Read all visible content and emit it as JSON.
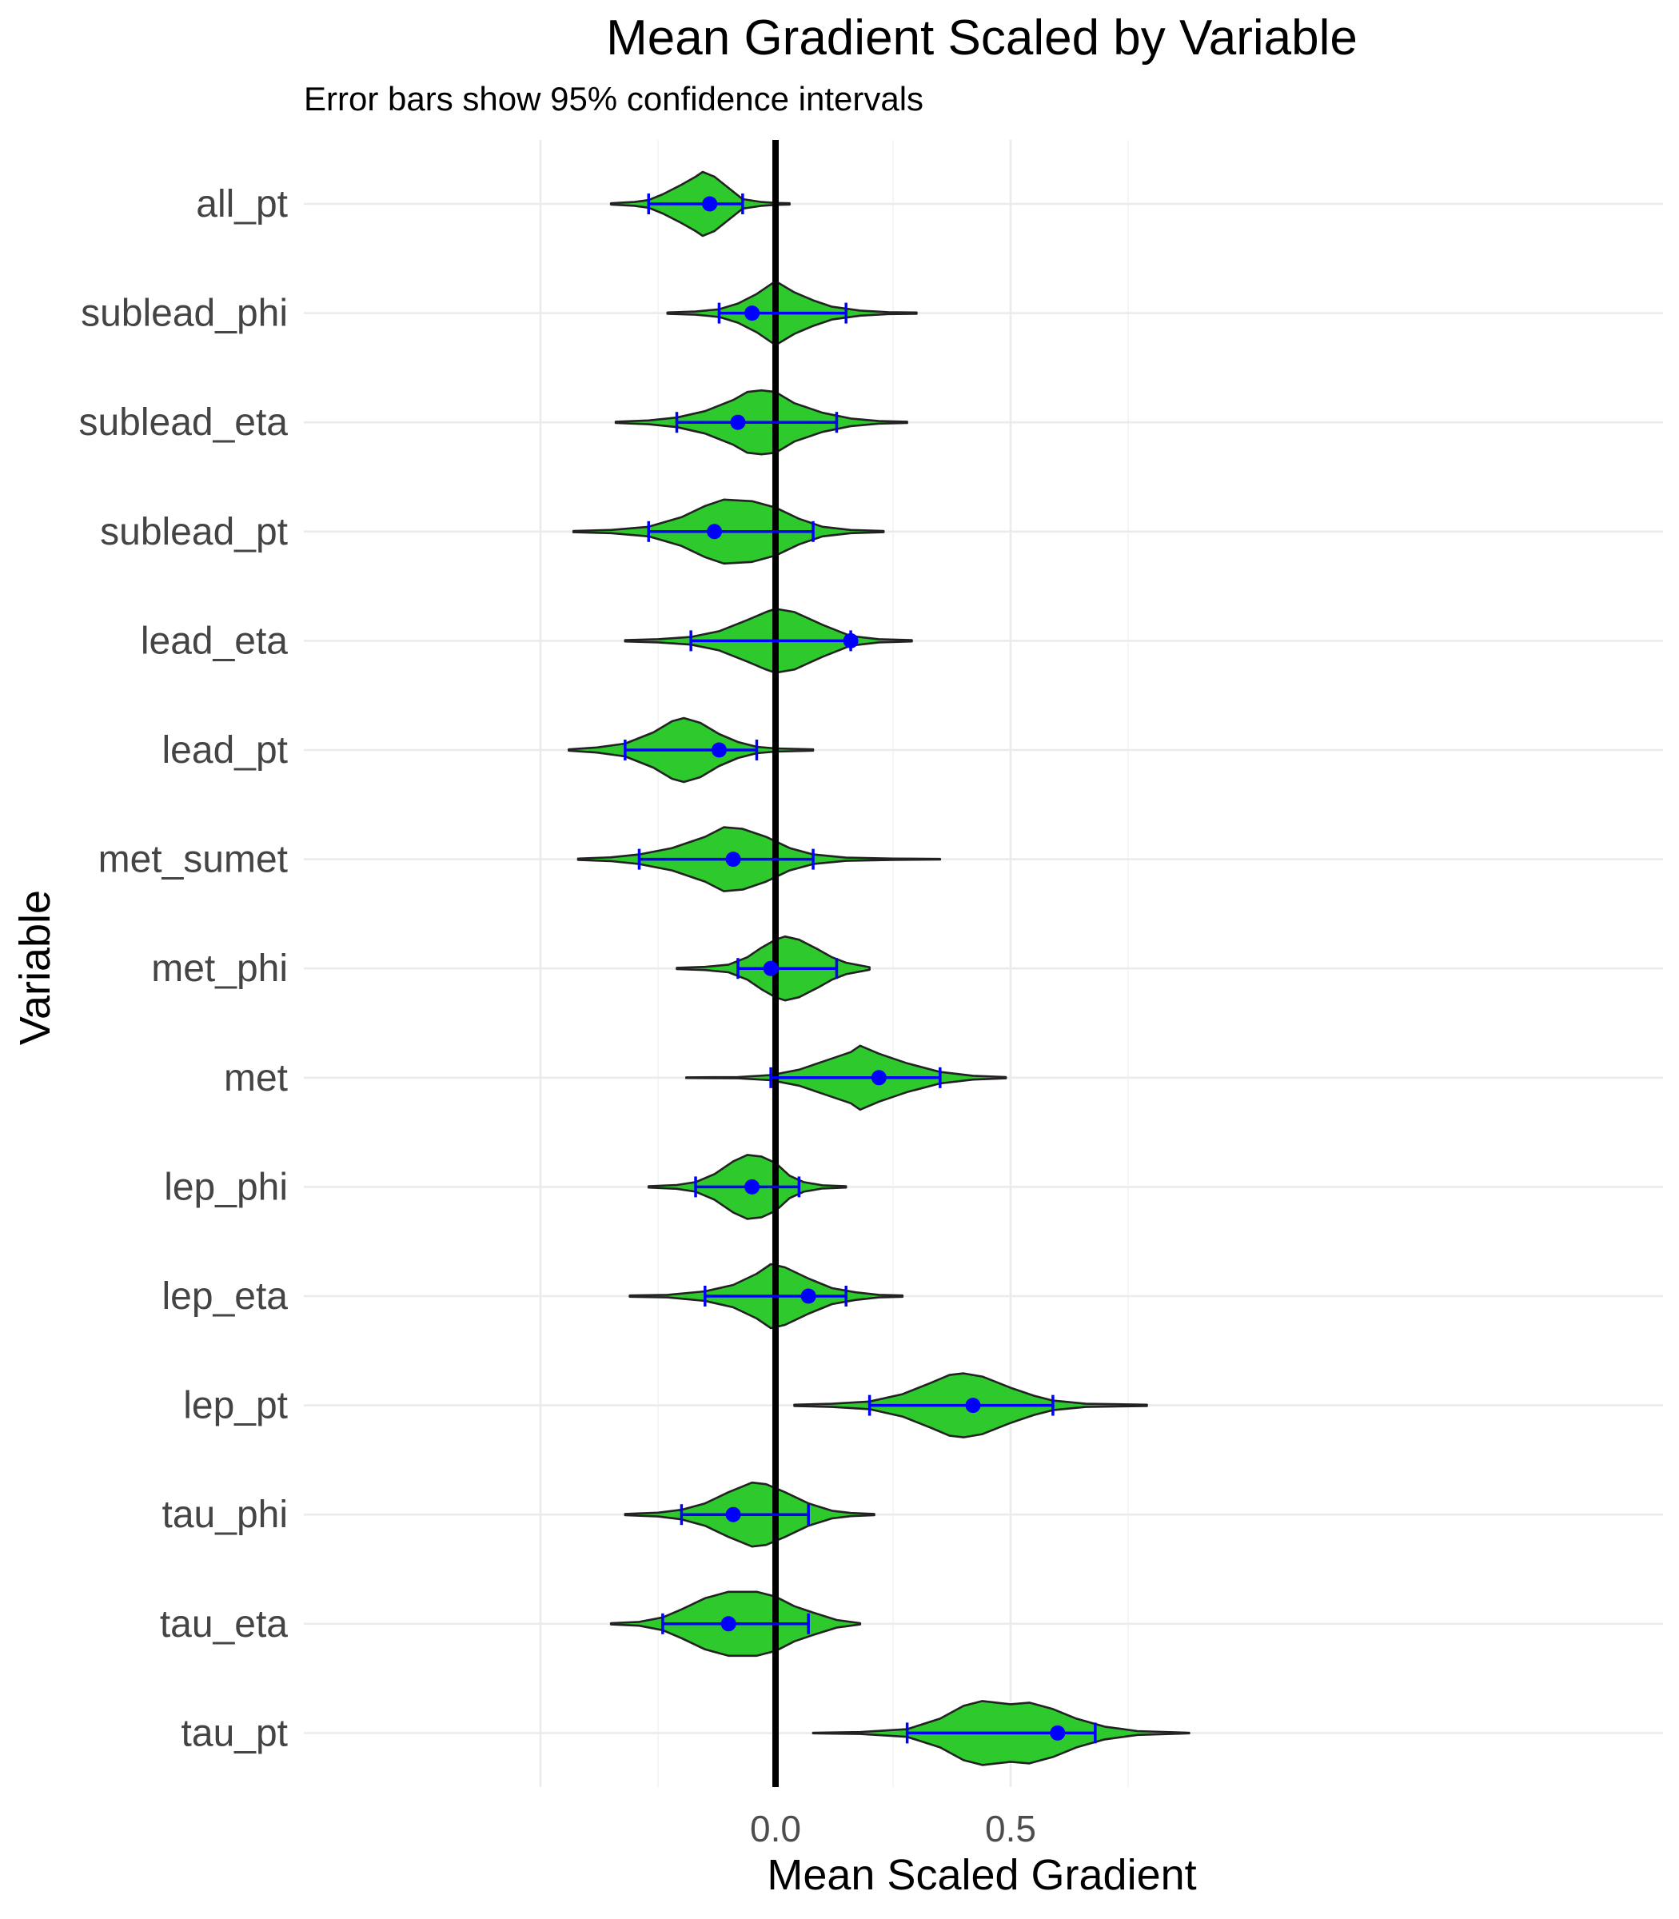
{
  "chart_data": {
    "type": "violin",
    "title": "Mean Gradient Scaled by Variable",
    "subtitle": "Error bars show 95% confidence intervals",
    "xlabel": "Mean Scaled Gradient",
    "ylabel": "Variable",
    "xlim": [
      -0.5,
      0.95
    ],
    "x_ticks": [
      0.0,
      0.5
    ],
    "x_tick_labels": [
      "0.0",
      "0.5"
    ],
    "reference_line_x": 0.0,
    "colors": {
      "fill": "#2dc92d",
      "outline": "#222222",
      "error_bar": "#0000ff",
      "reference_line": "#000000"
    },
    "categories": [
      "all_pt",
      "sublead_phi",
      "sublead_eta",
      "sublead_pt",
      "lead_eta",
      "lead_pt",
      "met_sumet",
      "met_phi",
      "met",
      "lep_phi",
      "lep_eta",
      "lep_pt",
      "tau_phi",
      "tau_eta",
      "tau_pt"
    ],
    "series": [
      {
        "name": "all_pt",
        "mean": -0.14,
        "ci": [
          -0.27,
          -0.07
        ],
        "min": -0.35,
        "max": 0.03,
        "density": [
          [
            -0.35,
            0.02
          ],
          [
            -0.3,
            0.06
          ],
          [
            -0.27,
            0.12
          ],
          [
            -0.24,
            0.3
          ],
          [
            -0.2,
            0.6
          ],
          [
            -0.17,
            0.85
          ],
          [
            -0.155,
            1.0
          ],
          [
            -0.13,
            0.85
          ],
          [
            -0.1,
            0.5
          ],
          [
            -0.07,
            0.15
          ],
          [
            -0.03,
            0.06
          ],
          [
            0.0,
            0.03
          ],
          [
            0.03,
            0.02
          ]
        ]
      },
      {
        "name": "sublead_phi",
        "mean": -0.05,
        "ci": [
          -0.12,
          0.15
        ],
        "min": -0.23,
        "max": 0.3,
        "density": [
          [
            -0.23,
            0.02
          ],
          [
            -0.17,
            0.05
          ],
          [
            -0.12,
            0.12
          ],
          [
            -0.08,
            0.3
          ],
          [
            -0.04,
            0.6
          ],
          [
            0.0,
            1.0
          ],
          [
            0.04,
            0.65
          ],
          [
            0.08,
            0.4
          ],
          [
            0.12,
            0.2
          ],
          [
            0.18,
            0.08
          ],
          [
            0.24,
            0.03
          ],
          [
            0.3,
            0.02
          ]
        ]
      },
      {
        "name": "sublead_eta",
        "mean": -0.08,
        "ci": [
          -0.21,
          0.13
        ],
        "min": -0.34,
        "max": 0.28,
        "density": [
          [
            -0.34,
            0.02
          ],
          [
            -0.27,
            0.06
          ],
          [
            -0.21,
            0.15
          ],
          [
            -0.15,
            0.35
          ],
          [
            -0.09,
            0.7
          ],
          [
            -0.06,
            0.95
          ],
          [
            -0.03,
            1.0
          ],
          [
            0.0,
            0.95
          ],
          [
            0.04,
            0.6
          ],
          [
            0.1,
            0.3
          ],
          [
            0.16,
            0.12
          ],
          [
            0.22,
            0.04
          ],
          [
            0.28,
            0.02
          ]
        ]
      },
      {
        "name": "sublead_pt",
        "mean": -0.13,
        "ci": [
          -0.27,
          0.08
        ],
        "min": -0.43,
        "max": 0.23,
        "density": [
          [
            -0.43,
            0.02
          ],
          [
            -0.35,
            0.05
          ],
          [
            -0.27,
            0.15
          ],
          [
            -0.2,
            0.45
          ],
          [
            -0.15,
            0.8
          ],
          [
            -0.11,
            1.0
          ],
          [
            -0.05,
            0.95
          ],
          [
            0.0,
            0.75
          ],
          [
            0.05,
            0.4
          ],
          [
            0.1,
            0.15
          ],
          [
            0.16,
            0.05
          ],
          [
            0.23,
            0.02
          ]
        ]
      },
      {
        "name": "lead_eta",
        "mean": 0.16,
        "ci": [
          -0.18,
          0.16
        ],
        "min": -0.32,
        "max": 0.29,
        "density": [
          [
            -0.32,
            0.02
          ],
          [
            -0.25,
            0.05
          ],
          [
            -0.18,
            0.12
          ],
          [
            -0.12,
            0.3
          ],
          [
            -0.06,
            0.65
          ],
          [
            -0.02,
            0.9
          ],
          [
            0.0,
            1.0
          ],
          [
            0.04,
            0.9
          ],
          [
            0.1,
            0.5
          ],
          [
            0.16,
            0.15
          ],
          [
            0.22,
            0.05
          ],
          [
            0.29,
            0.02
          ]
        ]
      },
      {
        "name": "lead_pt",
        "mean": -0.12,
        "ci": [
          -0.32,
          -0.04
        ],
        "min": -0.44,
        "max": 0.08,
        "density": [
          [
            -0.44,
            0.02
          ],
          [
            -0.38,
            0.08
          ],
          [
            -0.32,
            0.2
          ],
          [
            -0.26,
            0.55
          ],
          [
            -0.22,
            0.9
          ],
          [
            -0.195,
            1.0
          ],
          [
            -0.16,
            0.85
          ],
          [
            -0.12,
            0.5
          ],
          [
            -0.08,
            0.25
          ],
          [
            -0.04,
            0.1
          ],
          [
            0.0,
            0.05
          ],
          [
            0.08,
            0.02
          ]
        ]
      },
      {
        "name": "met_sumet",
        "mean": -0.09,
        "ci": [
          -0.29,
          0.08
        ],
        "min": -0.42,
        "max": 0.35,
        "density": [
          [
            -0.42,
            0.02
          ],
          [
            -0.35,
            0.06
          ],
          [
            -0.29,
            0.15
          ],
          [
            -0.22,
            0.35
          ],
          [
            -0.15,
            0.7
          ],
          [
            -0.11,
            1.0
          ],
          [
            -0.07,
            0.95
          ],
          [
            -0.02,
            0.7
          ],
          [
            0.03,
            0.35
          ],
          [
            0.08,
            0.15
          ],
          [
            0.15,
            0.05
          ],
          [
            0.25,
            0.02
          ],
          [
            0.35,
            0.01
          ]
        ]
      },
      {
        "name": "met_phi",
        "mean": -0.01,
        "ci": [
          -0.08,
          0.13
        ],
        "min": -0.21,
        "max": 0.2,
        "density": [
          [
            -0.21,
            0.02
          ],
          [
            -0.15,
            0.05
          ],
          [
            -0.1,
            0.12
          ],
          [
            -0.06,
            0.35
          ],
          [
            -0.03,
            0.65
          ],
          [
            0.0,
            0.9
          ],
          [
            0.02,
            1.0
          ],
          [
            0.05,
            0.9
          ],
          [
            0.09,
            0.6
          ],
          [
            0.12,
            0.35
          ],
          [
            0.15,
            0.18
          ],
          [
            0.2,
            0.04
          ]
        ]
      },
      {
        "name": "met",
        "mean": 0.22,
        "ci": [
          -0.01,
          0.35
        ],
        "min": -0.19,
        "max": 0.49,
        "density": [
          [
            -0.19,
            0.01
          ],
          [
            -0.08,
            0.02
          ],
          [
            -0.01,
            0.08
          ],
          [
            0.05,
            0.25
          ],
          [
            0.11,
            0.55
          ],
          [
            0.16,
            0.8
          ],
          [
            0.18,
            1.0
          ],
          [
            0.22,
            0.75
          ],
          [
            0.28,
            0.45
          ],
          [
            0.35,
            0.18
          ],
          [
            0.42,
            0.06
          ],
          [
            0.49,
            0.02
          ]
        ]
      },
      {
        "name": "lep_phi",
        "mean": -0.05,
        "ci": [
          -0.17,
          0.05
        ],
        "min": -0.27,
        "max": 0.15,
        "density": [
          [
            -0.27,
            0.02
          ],
          [
            -0.21,
            0.06
          ],
          [
            -0.17,
            0.15
          ],
          [
            -0.13,
            0.4
          ],
          [
            -0.09,
            0.8
          ],
          [
            -0.06,
            1.0
          ],
          [
            -0.03,
            0.95
          ],
          [
            0.0,
            0.75
          ],
          [
            0.03,
            0.35
          ],
          [
            0.06,
            0.15
          ],
          [
            0.1,
            0.05
          ],
          [
            0.15,
            0.02
          ]
        ]
      },
      {
        "name": "lep_eta",
        "mean": 0.07,
        "ci": [
          -0.15,
          0.15
        ],
        "min": -0.31,
        "max": 0.27,
        "density": [
          [
            -0.31,
            0.02
          ],
          [
            -0.23,
            0.04
          ],
          [
            -0.15,
            0.15
          ],
          [
            -0.09,
            0.35
          ],
          [
            -0.04,
            0.7
          ],
          [
            -0.01,
            1.0
          ],
          [
            0.02,
            0.9
          ],
          [
            0.07,
            0.55
          ],
          [
            0.12,
            0.25
          ],
          [
            0.17,
            0.12
          ],
          [
            0.22,
            0.04
          ],
          [
            0.27,
            0.02
          ]
        ]
      },
      {
        "name": "lep_pt",
        "mean": 0.42,
        "ci": [
          0.2,
          0.59
        ],
        "min": 0.04,
        "max": 0.79,
        "density": [
          [
            0.04,
            0.02
          ],
          [
            0.12,
            0.05
          ],
          [
            0.2,
            0.12
          ],
          [
            0.27,
            0.35
          ],
          [
            0.33,
            0.7
          ],
          [
            0.37,
            0.95
          ],
          [
            0.4,
            1.0
          ],
          [
            0.44,
            0.9
          ],
          [
            0.5,
            0.55
          ],
          [
            0.55,
            0.3
          ],
          [
            0.59,
            0.15
          ],
          [
            0.66,
            0.05
          ],
          [
            0.79,
            0.02
          ]
        ]
      },
      {
        "name": "tau_phi",
        "mean": -0.09,
        "ci": [
          -0.2,
          0.07
        ],
        "min": -0.32,
        "max": 0.21,
        "density": [
          [
            -0.32,
            0.02
          ],
          [
            -0.25,
            0.06
          ],
          [
            -0.2,
            0.15
          ],
          [
            -0.15,
            0.35
          ],
          [
            -0.1,
            0.7
          ],
          [
            -0.05,
            1.0
          ],
          [
            -0.02,
            0.95
          ],
          [
            0.02,
            0.7
          ],
          [
            0.07,
            0.35
          ],
          [
            0.12,
            0.12
          ],
          [
            0.16,
            0.05
          ],
          [
            0.21,
            0.02
          ]
        ]
      },
      {
        "name": "tau_eta",
        "mean": -0.1,
        "ci": [
          -0.24,
          0.07
        ],
        "min": -0.35,
        "max": 0.18,
        "density": [
          [
            -0.35,
            0.02
          ],
          [
            -0.29,
            0.06
          ],
          [
            -0.24,
            0.2
          ],
          [
            -0.2,
            0.45
          ],
          [
            -0.15,
            0.8
          ],
          [
            -0.1,
            1.0
          ],
          [
            -0.04,
            1.0
          ],
          [
            0.0,
            0.85
          ],
          [
            0.04,
            0.55
          ],
          [
            0.08,
            0.35
          ],
          [
            0.13,
            0.12
          ],
          [
            0.18,
            0.02
          ]
        ]
      },
      {
        "name": "tau_pt",
        "mean": 0.6,
        "ci": [
          0.28,
          0.68
        ],
        "min": 0.08,
        "max": 0.88,
        "density": [
          [
            0.08,
            0.01
          ],
          [
            0.18,
            0.03
          ],
          [
            0.28,
            0.12
          ],
          [
            0.35,
            0.45
          ],
          [
            0.4,
            0.85
          ],
          [
            0.44,
            1.0
          ],
          [
            0.5,
            0.9
          ],
          [
            0.54,
            0.95
          ],
          [
            0.59,
            0.75
          ],
          [
            0.64,
            0.45
          ],
          [
            0.7,
            0.2
          ],
          [
            0.77,
            0.06
          ],
          [
            0.88,
            0.01
          ]
        ]
      }
    ]
  }
}
